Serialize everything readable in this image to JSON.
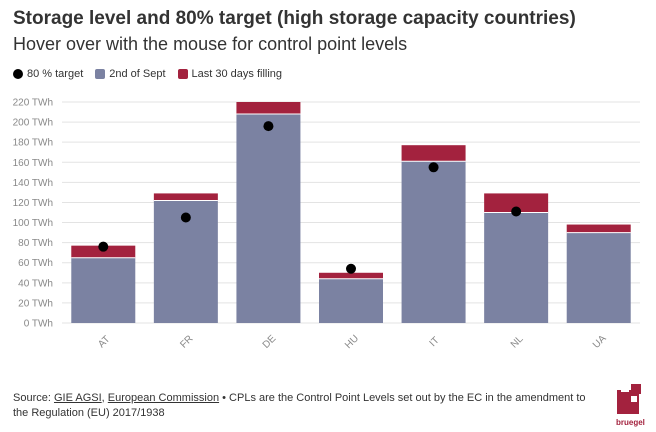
{
  "header": {
    "title": "Storage level and 80% target (high storage capacity countries)",
    "subtitle": "Hover over with the mouse for control point levels"
  },
  "legend": [
    {
      "label": "80 % target",
      "color": "#000000",
      "shape": "dot"
    },
    {
      "label": "2nd of Sept",
      "color": "#7b82a2",
      "shape": "square"
    },
    {
      "label": "Last 30 days filling",
      "color": "#a3223e",
      "shape": "square"
    }
  ],
  "footer": {
    "source_prefix": "Source:",
    "source1": "GIE AGSI",
    "sep1": ",",
    "source2": "European Commission",
    "note": "• CPLs are the Control Point Levels set out by the EC in the amendment to the Regulation (EU) 2017/1938"
  },
  "logo": {
    "text": "bruegel",
    "color": "#a3223e"
  },
  "chart_data": {
    "type": "bar",
    "stacked": true,
    "title": "Storage level and 80% target (high storage capacity countries)",
    "subtitle": "Hover over with the mouse for control point levels",
    "categories": [
      "AT",
      "FR",
      "DE",
      "HU",
      "IT",
      "NL",
      "UA"
    ],
    "series": [
      {
        "name": "2nd of Sept",
        "values": [
          65,
          122,
          208,
          44,
          161,
          110,
          90
        ],
        "color": "#7b82a2"
      },
      {
        "name": "Last 30 days filling",
        "values": [
          12,
          7,
          12,
          6,
          16,
          19,
          8
        ],
        "color": "#a3223e"
      },
      {
        "name": "80 % target",
        "values": [
          76,
          105,
          196,
          54,
          155,
          111,
          null
        ],
        "color": "#000000",
        "type": "dot"
      }
    ],
    "y_ticks": [
      0,
      20,
      40,
      60,
      80,
      100,
      120,
      140,
      160,
      180,
      200,
      220
    ],
    "y_tick_suffix": " TWh",
    "ylim": [
      0,
      220
    ],
    "grid": true,
    "xlabel": "",
    "ylabel": "",
    "legend_position": "top-left"
  }
}
